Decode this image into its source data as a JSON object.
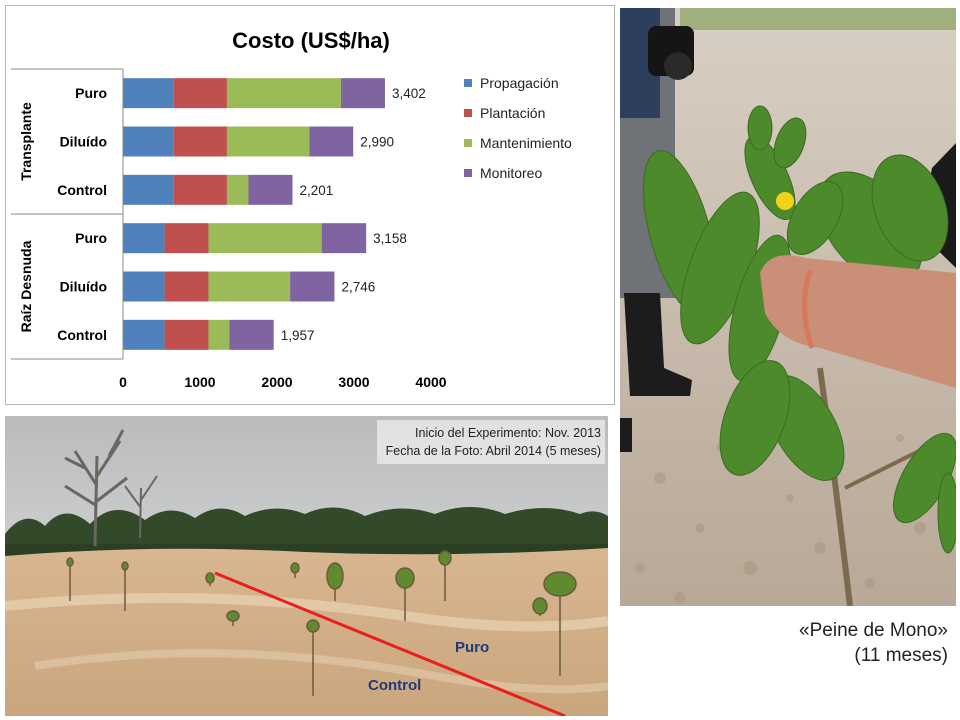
{
  "chart_data": {
    "type": "bar",
    "stacked": true,
    "orientation": "horizontal",
    "title": "Costo (US$/ha)",
    "groups": [
      {
        "label": "Transplante",
        "categories": [
          "Puro",
          "Diluído",
          "Control"
        ]
      },
      {
        "label": "Raíz Desnuda",
        "categories": [
          "Puro",
          "Diluído",
          "Control"
        ]
      }
    ],
    "categories": [
      "Puro",
      "Diluído",
      "Control",
      "Puro",
      "Diluído",
      "Control"
    ],
    "series": [
      {
        "name": "Propagación",
        "color": "#4f81bd",
        "values": [
          660,
          660,
          660,
          540,
          540,
          540
        ]
      },
      {
        "name": "Plantación",
        "color": "#c0504d",
        "values": [
          690,
          690,
          690,
          570,
          570,
          570
        ]
      },
      {
        "name": "Mantenimiento",
        "color": "#9bbb59",
        "values": [
          1480,
          1070,
          280,
          1470,
          1060,
          270
        ]
      },
      {
        "name": "Monitoreo",
        "color": "#8064a2",
        "values": [
          572,
          570,
          571,
          578,
          576,
          577
        ]
      }
    ],
    "totals": [
      "3,402",
      "2,990",
      "2,201",
      "3,158",
      "2,746",
      "1,957"
    ],
    "xlim": [
      0,
      4000
    ],
    "xticks": [
      "0",
      "1000",
      "2000",
      "3000",
      "4000"
    ],
    "legend_position": "right",
    "grid": false
  },
  "field_photo": {
    "line1": "Inicio del Experimento: Nov. 2013",
    "line2": "Fecha de la Foto: Abril 2014 (5 meses)",
    "label_puro": "Puro",
    "label_control": "Control",
    "divider_color": "#e8201c",
    "label_color": "#1f3a7a"
  },
  "plant_photo": {
    "caption_line1": "«Peine de Mono»",
    "caption_line2": "(11 meses)"
  }
}
